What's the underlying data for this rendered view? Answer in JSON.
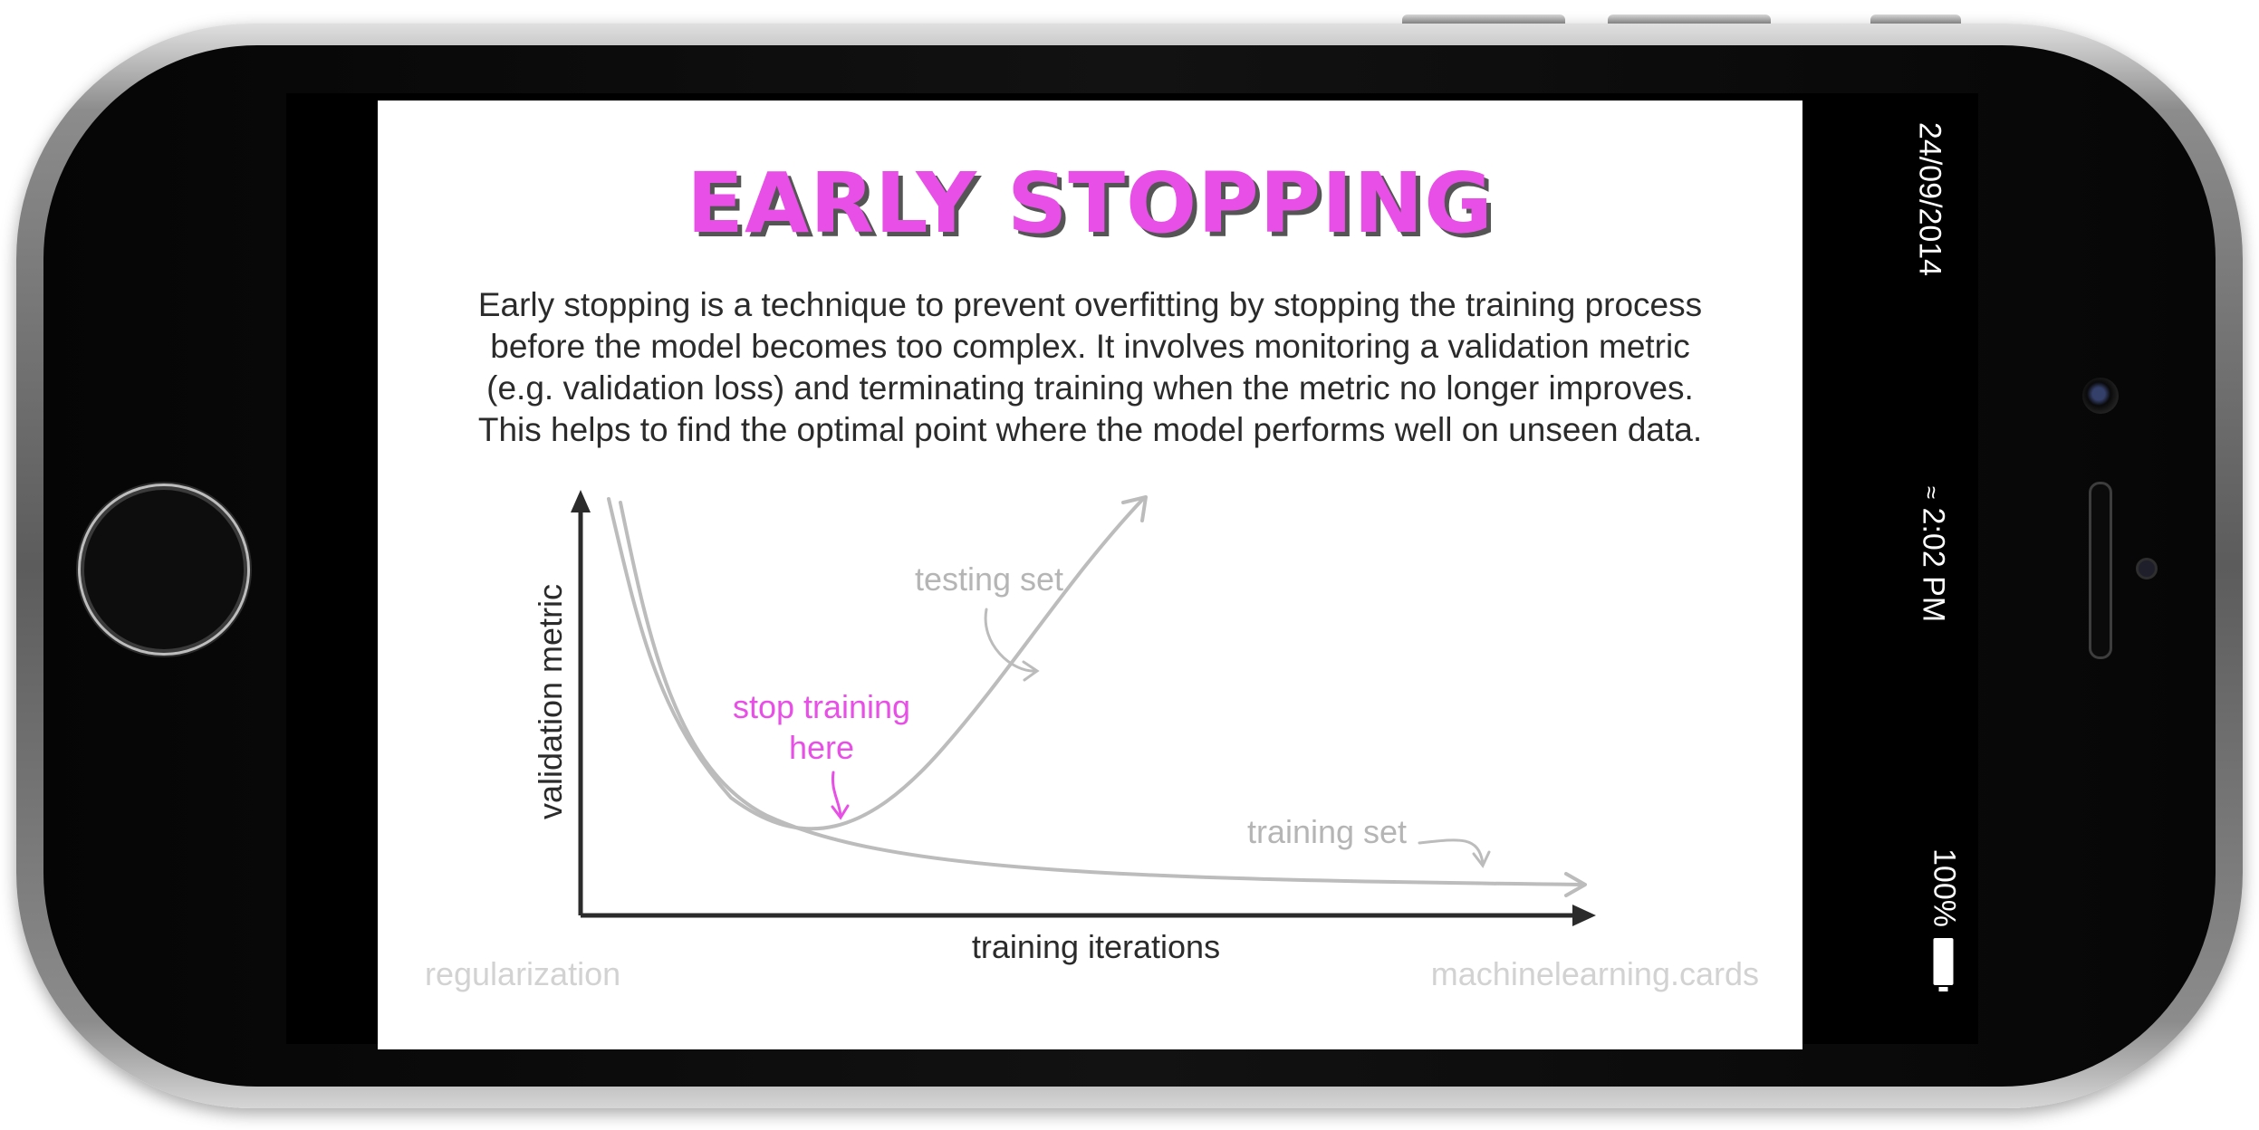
{
  "card": {
    "title": "EARLY STOPPING",
    "description": "Early stopping is a technique to prevent overfitting by stopping the training process before the model becomes too complex. It involves monitoring a validation metric (e.g. validation loss) and terminating training when the metric no longer improves. This helps to find the optimal point where the model performs well on unseen data.",
    "footer_left": "regularization",
    "footer_right": "machinelearning.cards"
  },
  "status_bar": {
    "date": "24/09/2014",
    "time": "2:02 PM",
    "battery": "100%"
  },
  "chart_data": {
    "type": "line",
    "xlabel": "training iterations",
    "ylabel": "validation metric",
    "annotations": {
      "testing": "testing set",
      "training": "training set",
      "stop_line1": "stop training",
      "stop_line2": "here"
    }
  },
  "colors": {
    "accent": "#e84fe6",
    "curve": "#bcbcbc",
    "axis": "#2b2b2b",
    "footer": "#d2d2d2"
  }
}
